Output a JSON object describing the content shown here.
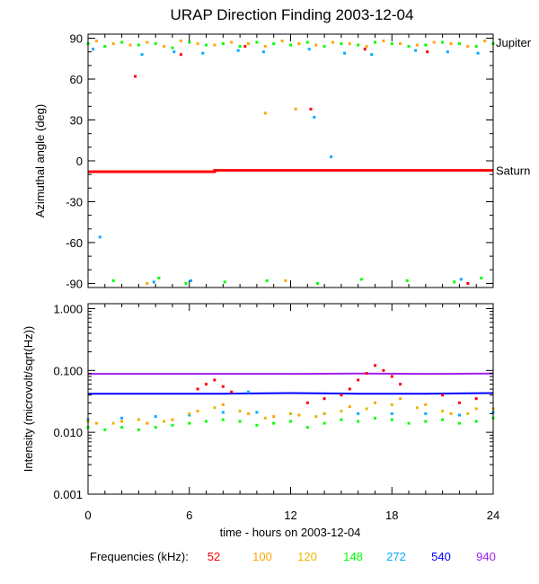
{
  "chart_data": {
    "title": "URAP Direction Finding  2003-12-04",
    "xlabel": "time - hours on 2003-12-04",
    "x_ticks": [
      "0",
      "6",
      "12",
      "18",
      "24"
    ],
    "xlim": [
      0,
      24
    ],
    "legend": {
      "label": "Frequencies (kHz):",
      "entries": [
        {
          "name": "52",
          "color": "#ff0000"
        },
        {
          "name": "100",
          "color": "#ffa500"
        },
        {
          "name": "120",
          "color": "#e6b800"
        },
        {
          "name": "148",
          "color": "#00ff00"
        },
        {
          "name": "272",
          "color": "#00aaff"
        },
        {
          "name": "540",
          "color": "#0000ff"
        },
        {
          "name": "940",
          "color": "#a020f0"
        }
      ]
    },
    "panels": [
      {
        "type": "scatter",
        "ylabel": "Azimuthal angle (deg)",
        "ylim": [
          -93,
          93
        ],
        "y_ticks": [
          "90",
          "60",
          "30",
          "0",
          "-30",
          "-60",
          "-90"
        ],
        "annotations": [
          {
            "text": "Jupiter",
            "y": 87
          },
          {
            "text": "Saturn",
            "y": -7
          }
        ],
        "series": [
          {
            "name": "Saturn",
            "color": "#ff0000",
            "x": [
              0,
              7.5,
              7.5,
              24
            ],
            "y": [
              -8,
              -8,
              -7,
              -7
            ]
          },
          {
            "name": "148",
            "color": "#00ff00",
            "x": [
              0,
              1,
              2,
              3,
              4,
              5,
              6,
              7,
              8,
              9,
              10,
              11,
              12,
              13,
              14,
              15,
              16,
              17,
              18,
              19,
              20,
              21,
              22,
              23,
              24
            ],
            "y": [
              86,
              84,
              87,
              85,
              86,
              83,
              87,
              85,
              86,
              84,
              87,
              86,
              85,
              87,
              84,
              86,
              85,
              87,
              86,
              84,
              85,
              87,
              86,
              84,
              86
            ]
          },
          {
            "name": "100",
            "color": "#ffa500",
            "x": [
              0.5,
              1.5,
              2.5,
              3.5,
              4.5,
              5.5,
              6.5,
              7.5,
              8.5,
              9.5,
              10.5,
              11.5,
              12.5,
              13.5,
              14.5,
              15.5,
              16.5,
              17.5,
              18.5,
              19.5,
              20.5,
              21.5,
              22.5,
              23.5
            ],
            "y": [
              88,
              86,
              85,
              87,
              84,
              88,
              86,
              85,
              87,
              86,
              84,
              88,
              86,
              85,
              87,
              86,
              84,
              88,
              86,
              85,
              87,
              86,
              84,
              88
            ]
          },
          {
            "name": "272",
            "color": "#00aaff",
            "x": [
              0.3,
              3.2,
              5.1,
              6.8,
              8.9,
              10.4,
              13.1,
              15.2,
              16.8,
              19.4,
              21.3,
              23.1
            ],
            "y": [
              82,
              78,
              80,
              79,
              81,
              80,
              82,
              79,
              78,
              81,
              80,
              79
            ]
          },
          {
            "name": "52",
            "color": "#ff0000",
            "x": [
              2.8,
              5.5,
              9.3,
              13.2,
              16.4,
              20.1,
              22.5
            ],
            "y": [
              62,
              78,
              84,
              38,
              82,
              80,
              -90
            ]
          },
          {
            "name": "100",
            "color": "#ffa500",
            "x": [
              10.5,
              12.3,
              3.5,
              11.7
            ],
            "y": [
              35,
              38,
              -90,
              -88
            ]
          },
          {
            "name": "148",
            "color": "#00ff00",
            "x": [
              1.5,
              4.2,
              5.8,
              8.1,
              10.6,
              13.6,
              16.2,
              18.9,
              21.7,
              23.3
            ],
            "y": [
              -88,
              -86,
              -90,
              -89,
              -88,
              -90,
              -87,
              -88,
              -89,
              -86
            ]
          },
          {
            "name": "272",
            "color": "#00aaff",
            "x": [
              0.7,
              3.9,
              6.1,
              13.4,
              14.4,
              22.1
            ],
            "y": [
              -56,
              -89,
              -88,
              32,
              3,
              -87
            ]
          }
        ]
      },
      {
        "type": "scatter",
        "y_scale": "log",
        "ylabel": "Intensity (microvolt/sqrt(Hz))",
        "ylim": [
          0.001,
          1.2
        ],
        "y_ticks": [
          "1.000",
          "0.100",
          "0.010",
          "0.001"
        ],
        "series": [
          {
            "name": "940",
            "color": "#a020f0",
            "x": [
              0,
              4,
              8,
              12,
              16,
              20,
              24
            ],
            "y": [
              0.088,
              0.088,
              0.088,
              0.088,
              0.089,
              0.088,
              0.089
            ]
          },
          {
            "name": "540",
            "color": "#0000ff",
            "x": [
              0,
              4,
              8,
              12,
              16,
              20,
              24
            ],
            "y": [
              0.042,
              0.042,
              0.042,
              0.043,
              0.042,
              0.042,
              0.043
            ]
          },
          {
            "name": "272",
            "color": "#00aaff",
            "x": [
              0,
              2,
              4,
              6,
              8,
              9.5,
              10,
              12,
              14,
              16,
              18,
              20,
              22,
              24
            ],
            "y": [
              0.016,
              0.017,
              0.018,
              0.019,
              0.021,
              0.045,
              0.021,
              0.02,
              0.02,
              0.02,
              0.02,
              0.02,
              0.019,
              0.021
            ]
          },
          {
            "name": "148",
            "color": "#00ff00",
            "x": [
              0,
              1,
              2,
              3,
              4,
              5,
              6,
              7,
              8,
              9,
              10,
              11,
              12,
              13,
              14,
              15,
              16,
              17,
              18,
              19,
              20,
              21,
              22,
              23,
              24
            ],
            "y": [
              0.012,
              0.011,
              0.012,
              0.011,
              0.012,
              0.013,
              0.014,
              0.015,
              0.016,
              0.015,
              0.013,
              0.014,
              0.015,
              0.012,
              0.014,
              0.016,
              0.015,
              0.017,
              0.016,
              0.014,
              0.015,
              0.016,
              0.014,
              0.015,
              0.017
            ]
          },
          {
            "name": "120",
            "color": "#e6b800",
            "x": [
              0,
              1.5,
              3,
              4.5,
              6,
              7.5,
              9,
              10.5,
              12,
              13.5,
              15,
              16.5,
              18,
              19.5,
              21,
              22.5,
              24
            ],
            "y": [
              0.015,
              0.014,
              0.016,
              0.015,
              0.02,
              0.025,
              0.022,
              0.017,
              0.02,
              0.018,
              0.022,
              0.024,
              0.028,
              0.025,
              0.022,
              0.02,
              0.024
            ]
          },
          {
            "name": "100",
            "color": "#ffa500",
            "x": [
              0.5,
              2,
              3.5,
              5,
              6.5,
              8,
              9.5,
              11,
              12.5,
              14,
              15.5,
              17,
              18.5,
              20,
              21.5,
              23
            ],
            "y": [
              0.014,
              0.015,
              0.014,
              0.016,
              0.022,
              0.028,
              0.02,
              0.018,
              0.019,
              0.02,
              0.026,
              0.03,
              0.035,
              0.028,
              0.02,
              0.024
            ]
          },
          {
            "name": "52",
            "color": "#ff0000",
            "x": [
              6.5,
              7,
              7.5,
              8,
              8.5,
              13,
              14,
              15,
              15.5,
              16,
              16.5,
              17,
              17.5,
              18,
              18.5,
              21,
              22,
              23
            ],
            "y": [
              0.05,
              0.06,
              0.07,
              0.055,
              0.045,
              0.03,
              0.035,
              0.04,
              0.05,
              0.07,
              0.09,
              0.12,
              0.1,
              0.08,
              0.06,
              0.04,
              0.03,
              0.035
            ]
          }
        ]
      }
    ]
  }
}
